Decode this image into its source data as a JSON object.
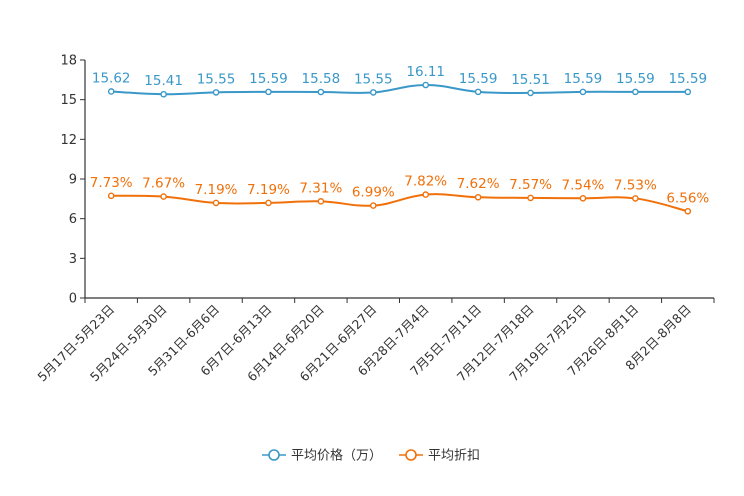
{
  "chart_data": {
    "type": "line",
    "title": "",
    "xlabel": "",
    "ylabel": "",
    "ylim": [
      0,
      18
    ],
    "yticks": [
      0,
      3,
      6,
      9,
      12,
      15,
      18
    ],
    "ytick_labels": [
      "0",
      "3",
      "6",
      "9",
      "12",
      "15",
      "18"
    ],
    "grid": false,
    "legend_position": "bottom-center",
    "categories": [
      "5月17日-5月23日",
      "5月24日-5月30日",
      "5月31日-6月6日",
      "6月7日-6月13日",
      "6月14日-6月20日",
      "6月21日-6月27日",
      "6月28日-7月4日",
      "7月5日-7月11日",
      "7月12日-7月18日",
      "7月19日-7月25日",
      "7月26日-8月1日",
      "8月2日-8月8日"
    ],
    "series": [
      {
        "name": "平均价格（万）",
        "color": "#3a98c9",
        "values": [
          15.62,
          15.41,
          15.55,
          15.59,
          15.58,
          15.55,
          16.11,
          15.59,
          15.51,
          15.59,
          15.59,
          15.59
        ],
        "labels": [
          "15.62",
          "15.41",
          "15.55",
          "15.59",
          "15.58",
          "15.55",
          "16.11",
          "15.59",
          "15.51",
          "15.59",
          "15.59",
          "15.59"
        ]
      },
      {
        "name": "平均折扣",
        "color": "#f0700a",
        "values": [
          7.73,
          7.67,
          7.19,
          7.19,
          7.31,
          6.99,
          7.82,
          7.62,
          7.57,
          7.54,
          7.53,
          6.56
        ],
        "labels": [
          "7.73%",
          "7.67%",
          "7.19%",
          "7.19%",
          "7.31%",
          "6.99%",
          "7.82%",
          "7.62%",
          "7.57%",
          "7.54%",
          "7.53%",
          "6.56%"
        ]
      }
    ]
  }
}
